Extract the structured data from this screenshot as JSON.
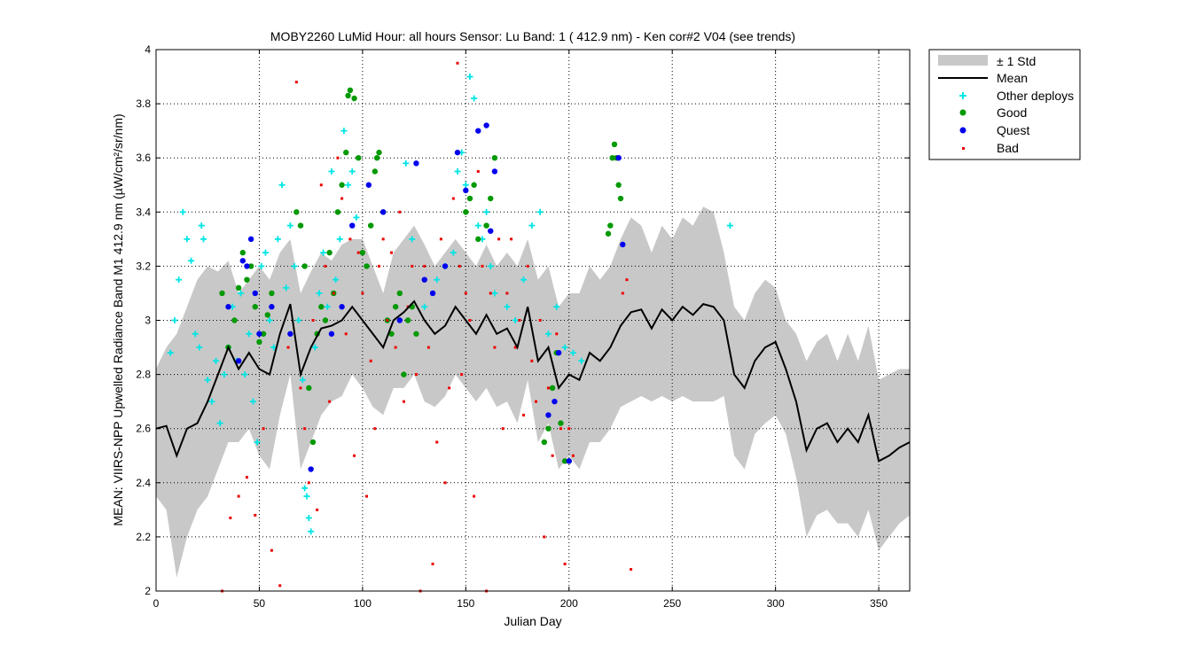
{
  "chart_data": {
    "type": "scatter",
    "title": "MOBY2260   LuMid  Hour: all hours  Sensor: Lu Band: 1 ( 412.9 nm)  - Ken cor#2 V04 (see trends)",
    "xlabel": "Julian Day",
    "ylabel": "MEAN: VIIRS-NPP Upwelled Radiance Band M1 412.9 nm (µW/cm²/sr/nm)",
    "xlim": [
      0,
      365
    ],
    "ylim": [
      2,
      4
    ],
    "xticks": [
      0,
      50,
      100,
      150,
      200,
      250,
      300,
      350
    ],
    "yticks": [
      2,
      2.2,
      2.4,
      2.6,
      2.8,
      3,
      3.2,
      3.4,
      3.6,
      3.8,
      4
    ],
    "xtick_labels": [
      "0",
      "50",
      "100",
      "150",
      "200",
      "250",
      "300",
      "350"
    ],
    "ytick_labels": [
      "2",
      "2.2",
      "2.4",
      "2.6",
      "2.8",
      "3",
      "3.2",
      "3.4",
      "3.6",
      "3.8",
      "4"
    ],
    "grid": true,
    "legend_position": "outside-top-right",
    "legend": [
      "± 1 Std",
      "Mean",
      "Other deploys",
      "Good",
      "Quest",
      "Bad"
    ],
    "colors": {
      "std_band": "#c8c8c8",
      "mean": "#000000",
      "other_deploys": "#00e5e5",
      "good": "#009900",
      "quest": "#0000ee",
      "bad": "#ee0000"
    },
    "mean_line": {
      "x": [
        0,
        5,
        10,
        15,
        20,
        25,
        30,
        35,
        40,
        45,
        50,
        55,
        60,
        65,
        70,
        75,
        80,
        85,
        90,
        95,
        100,
        105,
        110,
        115,
        120,
        125,
        130,
        135,
        140,
        145,
        150,
        155,
        160,
        165,
        170,
        175,
        180,
        185,
        190,
        195,
        200,
        205,
        210,
        215,
        220,
        225,
        230,
        235,
        240,
        245,
        250,
        255,
        260,
        265,
        270,
        275,
        280,
        285,
        290,
        295,
        300,
        305,
        310,
        315,
        320,
        325,
        330,
        335,
        340,
        345,
        350,
        355,
        360,
        365
      ],
      "y": [
        2.6,
        2.61,
        2.5,
        2.6,
        2.62,
        2.7,
        2.8,
        2.9,
        2.82,
        2.88,
        2.82,
        2.8,
        2.95,
        3.06,
        2.8,
        2.9,
        2.97,
        2.98,
        3.0,
        3.05,
        3.0,
        2.95,
        2.9,
        3.0,
        3.03,
        3.07,
        3.0,
        2.95,
        2.98,
        3.05,
        3.0,
        2.95,
        3.02,
        2.95,
        2.97,
        2.9,
        3.05,
        2.85,
        2.9,
        2.75,
        2.8,
        2.78,
        2.88,
        2.85,
        2.9,
        2.98,
        3.03,
        3.04,
        2.97,
        3.04,
        3.0,
        3.05,
        3.02,
        3.06,
        3.05,
        3.0,
        2.8,
        2.75,
        2.85,
        2.9,
        2.92,
        2.82,
        2.7,
        2.52,
        2.6,
        2.62,
        2.55,
        2.6,
        2.55,
        2.65,
        2.48,
        2.5,
        2.53,
        2.55
      ]
    },
    "std_band": {
      "x": [
        0,
        5,
        10,
        15,
        20,
        25,
        30,
        35,
        40,
        45,
        50,
        55,
        60,
        65,
        70,
        75,
        80,
        85,
        90,
        95,
        100,
        105,
        110,
        115,
        120,
        125,
        130,
        135,
        140,
        145,
        150,
        155,
        160,
        165,
        170,
        175,
        180,
        185,
        190,
        195,
        200,
        205,
        210,
        215,
        220,
        225,
        230,
        235,
        240,
        245,
        250,
        255,
        260,
        265,
        270,
        275,
        280,
        285,
        290,
        295,
        300,
        305,
        310,
        315,
        320,
        325,
        330,
        335,
        340,
        345,
        350,
        355,
        360,
        365
      ],
      "upper": [
        2.82,
        2.9,
        2.95,
        3.05,
        3.15,
        3.2,
        3.18,
        3.22,
        3.1,
        3.15,
        3.2,
        3.15,
        3.25,
        3.3,
        3.1,
        3.18,
        3.25,
        3.22,
        3.28,
        3.3,
        3.3,
        3.2,
        3.1,
        3.25,
        3.3,
        3.35,
        3.28,
        3.2,
        3.25,
        3.3,
        3.25,
        3.2,
        3.28,
        3.2,
        3.25,
        3.2,
        3.3,
        3.15,
        3.2,
        3.05,
        3.1,
        3.1,
        3.2,
        3.15,
        3.2,
        3.3,
        3.38,
        3.35,
        3.25,
        3.35,
        3.3,
        3.38,
        3.35,
        3.42,
        3.4,
        3.25,
        3.05,
        3.0,
        3.1,
        3.15,
        3.12,
        3.0,
        2.95,
        2.85,
        2.92,
        2.95,
        2.85,
        2.95,
        2.85,
        2.98,
        2.78,
        2.8,
        2.82,
        2.82
      ],
      "lower": [
        2.35,
        2.3,
        2.05,
        2.2,
        2.3,
        2.35,
        2.45,
        2.55,
        2.55,
        2.6,
        2.5,
        2.45,
        2.65,
        2.8,
        2.45,
        2.55,
        2.65,
        2.7,
        2.72,
        2.8,
        2.75,
        2.68,
        2.65,
        2.75,
        2.75,
        2.8,
        2.7,
        2.68,
        2.72,
        2.8,
        2.75,
        2.7,
        2.75,
        2.68,
        2.7,
        2.62,
        2.78,
        2.55,
        2.62,
        2.45,
        2.5,
        2.45,
        2.55,
        2.55,
        2.6,
        2.68,
        2.7,
        2.72,
        2.7,
        2.72,
        2.7,
        2.72,
        2.7,
        2.7,
        2.7,
        2.72,
        2.5,
        2.45,
        2.58,
        2.62,
        2.65,
        2.58,
        2.42,
        2.2,
        2.28,
        2.3,
        2.25,
        2.25,
        2.2,
        2.3,
        2.15,
        2.2,
        2.25,
        2.28
      ]
    },
    "series": [
      {
        "name": "Other deploys",
        "marker": "+",
        "x": [
          7,
          9,
          11,
          13,
          15,
          17,
          19,
          21,
          22,
          23,
          25,
          27,
          29,
          31,
          33,
          35,
          37,
          39,
          41,
          43,
          45,
          47,
          49,
          51,
          53,
          55,
          57,
          59,
          61,
          63,
          65,
          67,
          69,
          71,
          72,
          73,
          74,
          75,
          77,
          79,
          81,
          83,
          85,
          87,
          89,
          91,
          93,
          95,
          97,
          121,
          124,
          130,
          136,
          140,
          144,
          146,
          148,
          150,
          152,
          154,
          156,
          158,
          160,
          162,
          164,
          170,
          174,
          178,
          182,
          186,
          190,
          194,
          198,
          202,
          206,
          278
        ],
        "y": [
          2.88,
          3.0,
          3.15,
          3.4,
          3.3,
          3.22,
          2.95,
          2.9,
          3.35,
          3.3,
          2.78,
          2.7,
          2.85,
          2.62,
          2.8,
          2.9,
          3.05,
          2.85,
          3.1,
          2.8,
          2.95,
          2.7,
          2.55,
          3.2,
          3.25,
          3.0,
          2.9,
          3.3,
          3.5,
          3.12,
          3.35,
          3.2,
          3.0,
          2.78,
          2.38,
          2.35,
          2.27,
          2.22,
          2.9,
          3.1,
          3.25,
          3.05,
          3.55,
          3.15,
          3.3,
          3.7,
          3.5,
          3.55,
          3.38,
          3.58,
          3.3,
          3.05,
          3.15,
          3.2,
          3.25,
          3.55,
          3.62,
          3.5,
          3.9,
          3.82,
          3.35,
          3.3,
          3.4,
          3.2,
          3.1,
          3.05,
          3.0,
          3.15,
          3.35,
          3.4,
          2.95,
          3.05,
          2.9,
          2.88,
          2.85,
          3.35
        ]
      },
      {
        "name": "Good",
        "marker": "o",
        "x": [
          32,
          35,
          38,
          40,
          42,
          44,
          46,
          48,
          50,
          52,
          54,
          56,
          68,
          70,
          72,
          74,
          76,
          78,
          80,
          82,
          84,
          86,
          88,
          90,
          92,
          93,
          94,
          96,
          98,
          100,
          102,
          104,
          106,
          107,
          108,
          110,
          112,
          114,
          116,
          118,
          120,
          122,
          124,
          126,
          150,
          152,
          154,
          156,
          160,
          162,
          164,
          188,
          190,
          192,
          194,
          196,
          198,
          200,
          219,
          220,
          221,
          222,
          223,
          224,
          225
        ],
        "y": [
          3.1,
          2.9,
          3.0,
          3.12,
          3.25,
          3.15,
          3.2,
          3.05,
          2.92,
          2.95,
          3.02,
          3.1,
          3.4,
          3.35,
          3.2,
          2.75,
          2.55,
          2.95,
          3.05,
          3.0,
          3.25,
          3.1,
          3.4,
          3.5,
          3.62,
          3.83,
          3.85,
          3.82,
          3.6,
          3.25,
          3.2,
          3.35,
          3.55,
          3.6,
          3.62,
          3.4,
          3.0,
          2.95,
          3.05,
          3.1,
          2.8,
          3.0,
          3.05,
          2.95,
          3.4,
          3.45,
          3.5,
          3.3,
          3.35,
          3.45,
          3.6,
          2.55,
          2.6,
          2.75,
          2.88,
          2.62,
          2.48,
          2.48,
          3.32,
          3.35,
          3.6,
          3.65,
          3.6,
          3.5,
          3.45
        ],
        "note": "Good"
      },
      {
        "name": "Quest",
        "marker": "o",
        "x": [
          35,
          40,
          42,
          44,
          46,
          48,
          50,
          56,
          65,
          75,
          85,
          90,
          95,
          103,
          110,
          118,
          126,
          130,
          134,
          140,
          146,
          150,
          156,
          160,
          162,
          164,
          190,
          193,
          195,
          200,
          224,
          226
        ],
        "y": [
          3.05,
          2.85,
          3.22,
          3.2,
          3.3,
          3.1,
          2.95,
          3.05,
          2.95,
          2.45,
          2.95,
          3.05,
          3.35,
          3.5,
          3.4,
          3.0,
          3.58,
          3.15,
          3.1,
          3.2,
          3.62,
          3.48,
          3.7,
          3.72,
          3.33,
          3.55,
          2.65,
          2.7,
          2.88,
          2.48,
          3.6,
          3.28
        ]
      },
      {
        "name": "Bad",
        "marker": "dot",
        "x": [
          32,
          36,
          40,
          44,
          48,
          52,
          56,
          60,
          64,
          68,
          70,
          72,
          74,
          76,
          78,
          80,
          82,
          84,
          86,
          88,
          90,
          92,
          94,
          96,
          98,
          100,
          102,
          104,
          106,
          108,
          110,
          112,
          114,
          116,
          118,
          120,
          122,
          124,
          126,
          128,
          130,
          132,
          134,
          136,
          138,
          140,
          142,
          144,
          146,
          147,
          148,
          150,
          152,
          154,
          156,
          158,
          160,
          162,
          164,
          166,
          168,
          170,
          172,
          174,
          176,
          178,
          180,
          182,
          184,
          186,
          188,
          190,
          192,
          194,
          196,
          198,
          200,
          202,
          226,
          228,
          230
        ],
        "y": [
          2.0,
          2.27,
          2.35,
          2.42,
          2.28,
          2.6,
          2.15,
          2.02,
          2.9,
          3.88,
          2.75,
          2.6,
          2.4,
          3.0,
          2.3,
          3.5,
          3.2,
          2.7,
          3.1,
          3.6,
          3.45,
          2.95,
          3.3,
          2.5,
          3.25,
          3.1,
          2.35,
          2.85,
          2.6,
          3.2,
          3.3,
          3.0,
          3.25,
          2.9,
          3.4,
          2.7,
          3.05,
          3.2,
          2.8,
          2.0,
          3.2,
          2.9,
          2.1,
          2.55,
          3.3,
          2.4,
          2.75,
          3.45,
          3.95,
          3.2,
          2.8,
          3.1,
          3.0,
          2.35,
          3.55,
          3.2,
          2.0,
          3.1,
          2.9,
          3.3,
          2.6,
          3.1,
          3.3,
          2.9,
          3.0,
          2.65,
          3.2,
          2.85,
          2.7,
          3.0,
          2.2,
          2.75,
          2.5,
          2.95,
          2.6,
          2.1,
          2.6,
          2.5,
          3.1,
          3.15,
          2.08
        ]
      }
    ]
  }
}
